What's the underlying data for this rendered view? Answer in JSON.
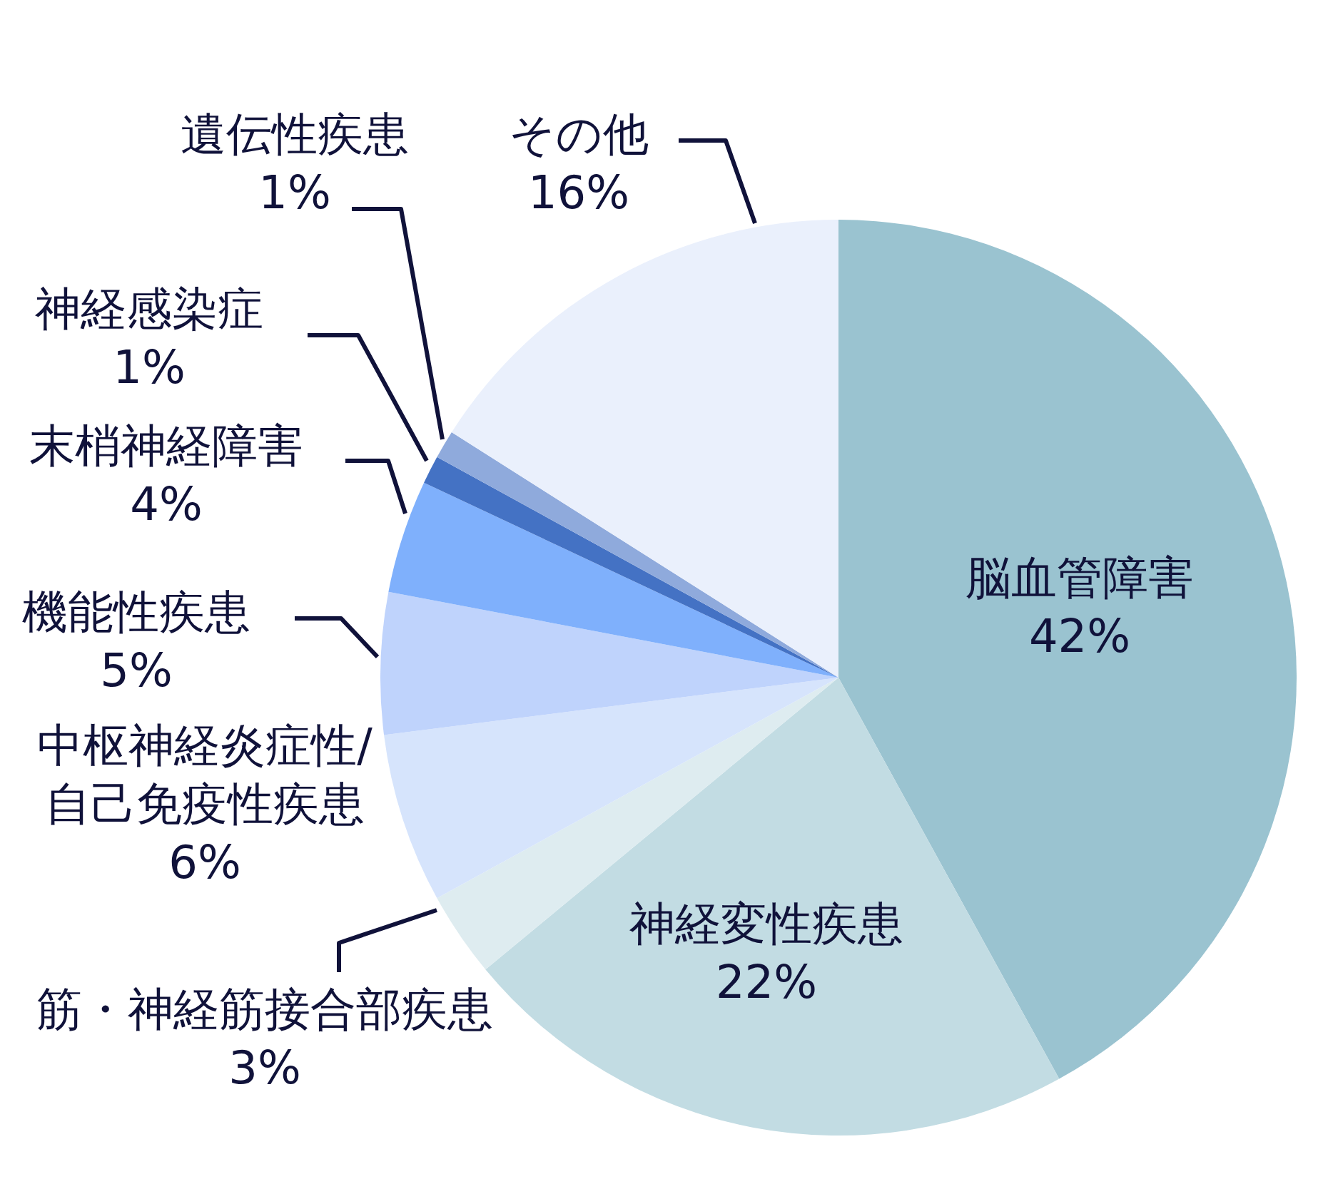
{
  "chart_data": {
    "type": "pie",
    "categories": [
      "脳血管障害",
      "神経変性疾患",
      "筋・神経筋接合部疾患",
      "中枢神経炎症性/自己免疫性疾患",
      "機能性疾患",
      "末梢神経障害",
      "神経感染症",
      "遺伝性疾患",
      "その他"
    ],
    "values": [
      42,
      22,
      3,
      6,
      5,
      4,
      1,
      1,
      16
    ],
    "value_labels": [
      "42%",
      "22%",
      "3%",
      "6%",
      "5%",
      "4%",
      "1%",
      "1%",
      "16%"
    ],
    "colors": [
      "#9ac3d0",
      "#c2dce3",
      "#deecf0",
      "#d6e4fc",
      "#bfd3fc",
      "#7fb0fc",
      "#4472c4",
      "#8faadc",
      "#eaf0fc"
    ]
  }
}
